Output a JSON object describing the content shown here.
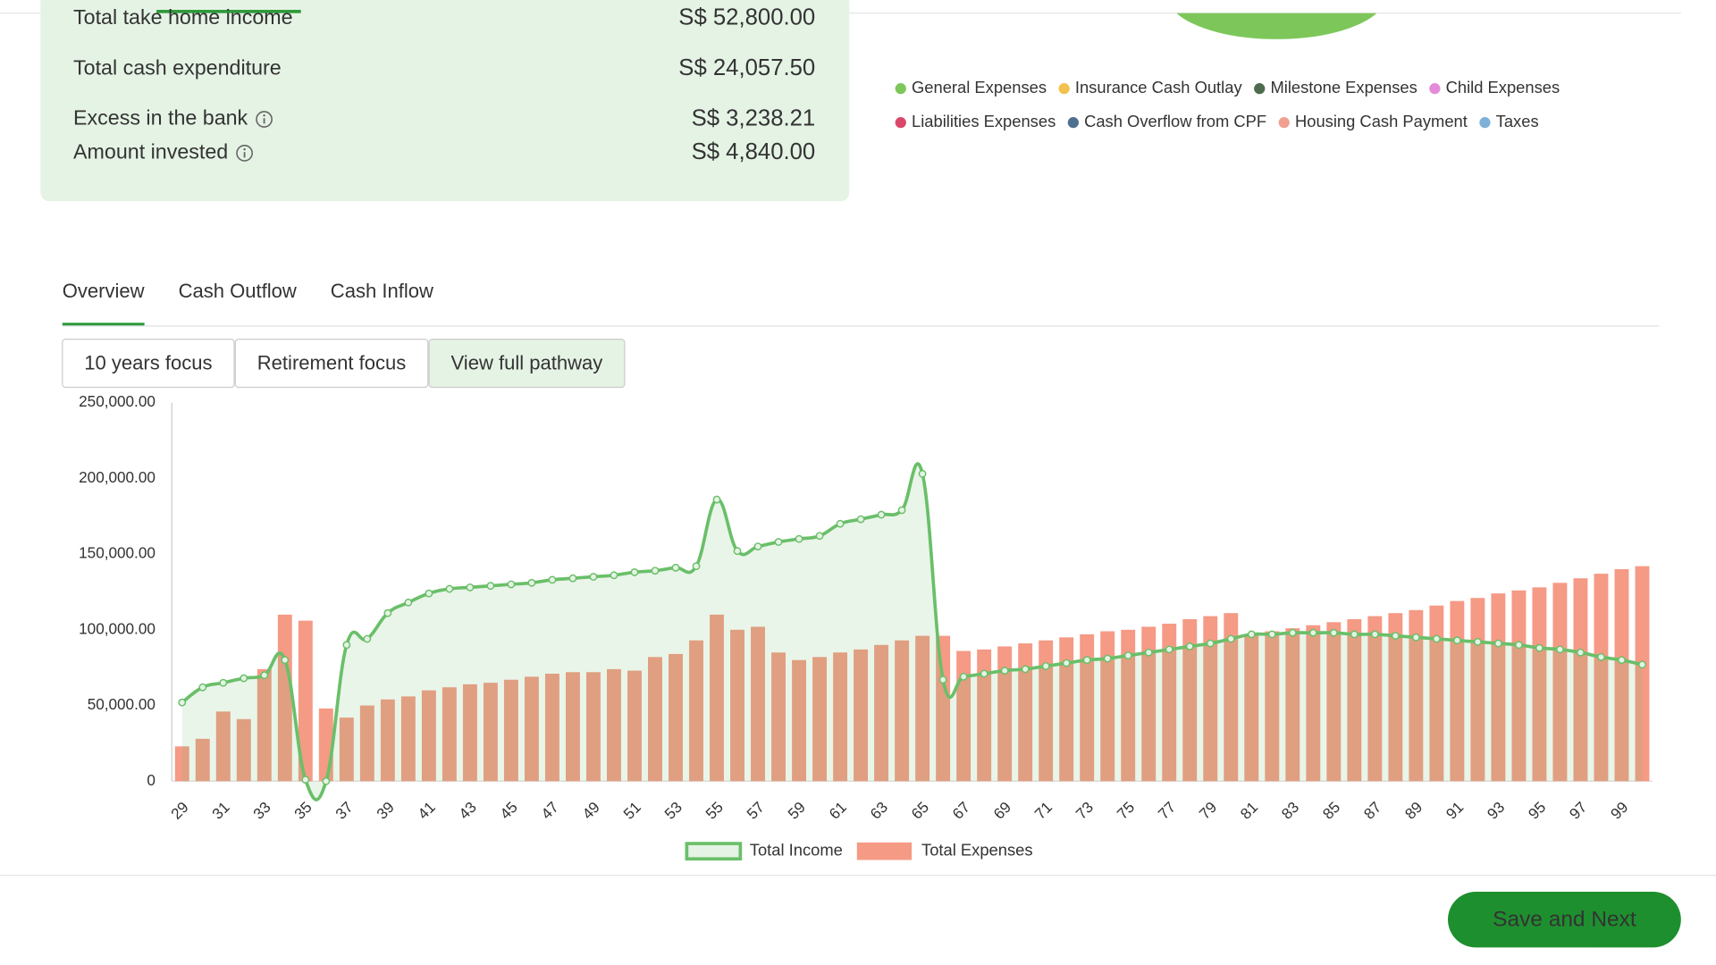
{
  "summary": {
    "rows": [
      {
        "label": "Total take home income",
        "value": "S$ 52,800.00"
      },
      {
        "label": "Total cash expenditure",
        "value": "S$ 24,057.50"
      },
      {
        "label": "Excess in the bank",
        "value": "S$ 3,238.21"
      },
      {
        "label": "Amount invested",
        "value": "S$ 4,840.00"
      }
    ]
  },
  "pie_legend": [
    {
      "name": "General Expenses",
      "color": "#7dc75a"
    },
    {
      "name": "Insurance Cash Outlay",
      "color": "#f2c14e"
    },
    {
      "name": "Milestone Expenses",
      "color": "#4e6b4e"
    },
    {
      "name": "Child Expenses",
      "color": "#e58ad9"
    },
    {
      "name": "Liabilities Expenses",
      "color": "#d9486a"
    },
    {
      "name": "Cash Overflow from CPF",
      "color": "#4f6f8f"
    },
    {
      "name": "Housing Cash Payment",
      "color": "#f0a090"
    },
    {
      "name": "Taxes",
      "color": "#7fb0d8"
    }
  ],
  "tabs": [
    "Overview",
    "Cash Outflow",
    "Cash Inflow"
  ],
  "focus_buttons": [
    "10 years focus",
    "Retirement focus",
    "View full pathway"
  ],
  "chart_data": {
    "type": "bar",
    "categories": [
      "29",
      null,
      "31",
      null,
      "33",
      null,
      "35",
      null,
      "37",
      null,
      "39",
      null,
      "41",
      null,
      "43",
      null,
      "45",
      null,
      "47",
      null,
      "49",
      null,
      "51",
      null,
      "53",
      null,
      "55",
      null,
      "57",
      null,
      "59",
      null,
      "61",
      null,
      "63",
      null,
      "65",
      null,
      "67",
      null,
      "69",
      null,
      "71",
      null,
      "73",
      null,
      "75",
      null,
      "77",
      null,
      "79",
      null,
      "81",
      null,
      "83",
      null,
      "85",
      null,
      "87",
      null,
      "89",
      null,
      "91",
      null,
      "93",
      null,
      "95",
      null,
      "97",
      null,
      "99",
      null
    ],
    "series": [
      {
        "name": "Total Income",
        "type": "line",
        "color": "#6abf69",
        "values": [
          52000,
          62000,
          65000,
          68000,
          70000,
          80000,
          1000,
          0,
          90000,
          94000,
          111000,
          118000,
          124000,
          127000,
          128000,
          129000,
          130000,
          131000,
          133000,
          134000,
          135000,
          136000,
          138000,
          139000,
          141000,
          142000,
          186000,
          152000,
          155000,
          158000,
          160000,
          162000,
          170000,
          173000,
          176000,
          179000,
          203000,
          67000,
          69000,
          71000,
          73000,
          74000,
          76000,
          78000,
          80000,
          81000,
          83000,
          85000,
          87000,
          89000,
          91000,
          94000,
          97000,
          97000,
          98000,
          98000,
          98000,
          97000,
          97000,
          96000,
          95000,
          94000,
          93000,
          92000,
          91000,
          90000,
          88000,
          87000,
          85000,
          82000,
          80000,
          77000
        ]
      },
      {
        "name": "Total Expenses",
        "type": "bar",
        "color": "#f59a85",
        "values": [
          23000,
          28000,
          46000,
          41000,
          74000,
          110000,
          106000,
          48000,
          42000,
          50000,
          54000,
          56000,
          60000,
          62000,
          64000,
          65000,
          67000,
          69000,
          71000,
          72000,
          72000,
          74000,
          73000,
          82000,
          84000,
          93000,
          110000,
          100000,
          102000,
          85000,
          80000,
          82000,
          85000,
          87000,
          90000,
          93000,
          96000,
          96000,
          86000,
          87000,
          89000,
          91000,
          93000,
          95000,
          97000,
          99000,
          100000,
          102000,
          104000,
          107000,
          109000,
          111000,
          97000,
          99000,
          101000,
          103000,
          105000,
          107000,
          109000,
          111000,
          113000,
          116000,
          119000,
          121000,
          124000,
          126000,
          128000,
          131000,
          134000,
          137000,
          140000,
          142000
        ]
      }
    ],
    "ylim": [
      0,
      250000
    ],
    "yticks": [
      0,
      {
        "value": 50000,
        "label": "50,000.00"
      },
      {
        "value": 100000,
        "label": "100,000.00"
      },
      {
        "value": 150000,
        "label": "150,000.00"
      },
      {
        "value": 200000,
        "label": "200,000.00"
      },
      {
        "value": 250000,
        "label": "250,000.00"
      }
    ],
    "grid": false
  },
  "footer": {
    "button": "Save and Next"
  }
}
